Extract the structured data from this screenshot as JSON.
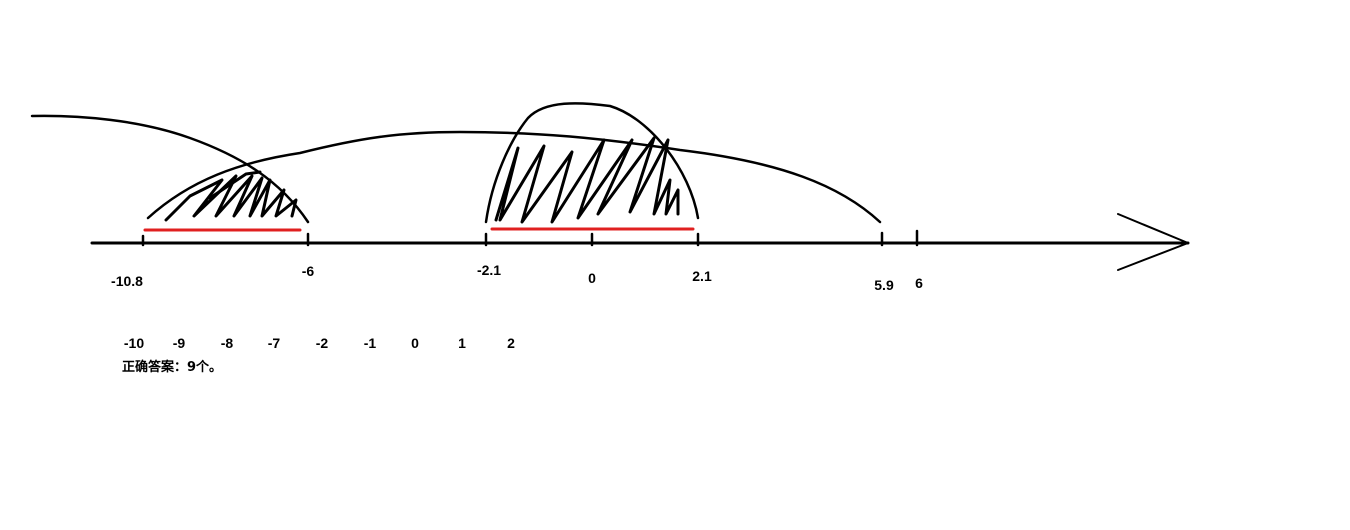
{
  "axis_labels": {
    "m10_8": "-10.8",
    "m6": "-6",
    "m2_1": "-2.1",
    "zero": "0",
    "p2_1": "2.1",
    "p5_9": "5.9",
    "p6": "6"
  },
  "integers": [
    "-10",
    "-9",
    "-8",
    "-7",
    "-2",
    "-1",
    "0",
    "1",
    "2"
  ],
  "answer": "正确答案：9个。",
  "colors": {
    "ink": "#000000",
    "highlight": "#e02020"
  }
}
